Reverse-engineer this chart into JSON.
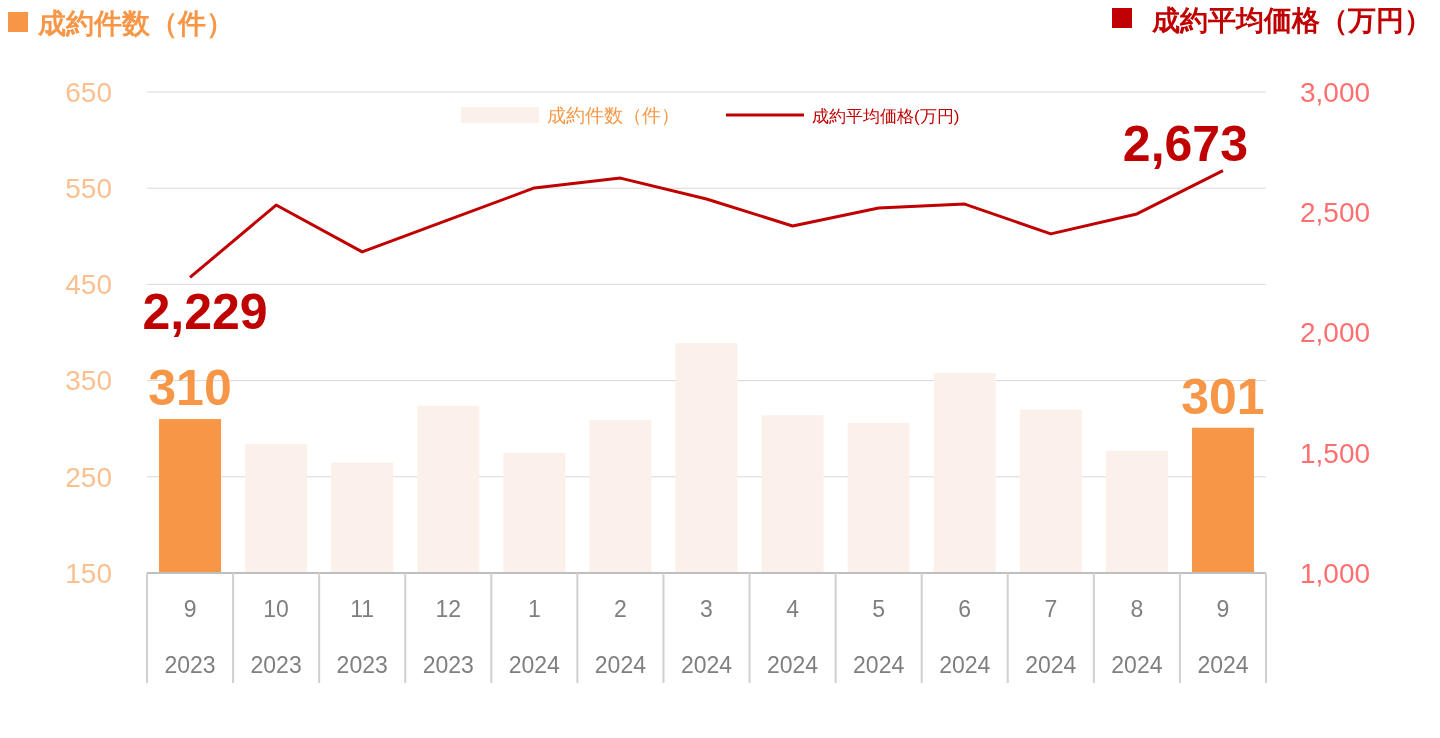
{
  "chart_data": {
    "type": "bar",
    "ylabel": "成約件数（件）",
    "y2label": "成約平均価格（万円）",
    "categories": [
      "9\n2023",
      "10\n2023",
      "11\n2023",
      "12\n2023",
      "1\n2024",
      "2\n2024",
      "3\n2024",
      "4\n2024",
      "5\n2024",
      "6\n2024",
      "7\n2024",
      "8\n2024",
      "9\n2024"
    ],
    "series": [
      {
        "name": "成約件数（件）",
        "color": "#fcf1ea",
        "colors": [
          "#f79646",
          "#fcf1ea",
          "#fcf1ea",
          "#fcf1ea",
          "#fcf1ea",
          "#fcf1ea",
          "#fcf1ea",
          "#fcf1ea",
          "#fcf1ea",
          "#fcf1ea",
          "#fcf1ea",
          "#fcf1ea",
          "#f79646"
        ],
        "values": [
          310,
          284,
          265,
          324,
          275,
          309,
          389,
          314,
          306,
          358,
          320,
          277,
          301
        ],
        "value_labels": [
          "310",
          null,
          null,
          null,
          null,
          null,
          null,
          null,
          null,
          null,
          null,
          null,
          "301"
        ]
      },
      {
        "name": "成約平均価格(万円)",
        "type": "line",
        "axis": "y2",
        "color": "#c00000",
        "values": [
          2229,
          2530,
          2335,
          2468,
          2601,
          2642,
          2555,
          2443,
          2518,
          2534,
          2410,
          2493,
          2673
        ],
        "value_labels": [
          "2,229",
          null,
          null,
          null,
          null,
          null,
          null,
          null,
          null,
          null,
          null,
          null,
          "2,673"
        ]
      }
    ],
    "ylim": [
      150,
      650
    ],
    "yticks": [
      150,
      250,
      350,
      450,
      550,
      650
    ],
    "y2lim": [
      1000,
      3000
    ],
    "y2ticks": [
      {
        "value": 1000,
        "label": "1,000"
      },
      {
        "value": 1500,
        "label": "1,500"
      },
      {
        "value": 2000,
        "label": "2,000"
      },
      {
        "value": 2500,
        "label": "2,500"
      },
      {
        "value": 3000,
        "label": "3,000"
      }
    ],
    "grid": "y",
    "legend": "top",
    "marker": "none"
  }
}
